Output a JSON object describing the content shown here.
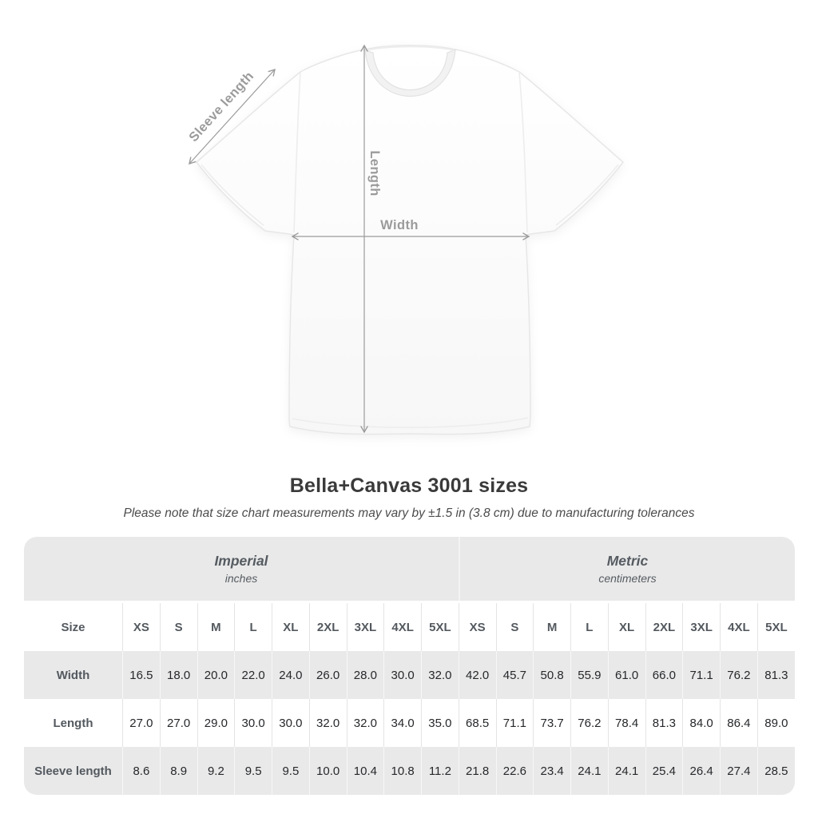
{
  "diagram": {
    "sleeve_label": "Sleeve length",
    "length_label": "Length",
    "width_label": "Width"
  },
  "title": "Bella+Canvas 3001 sizes",
  "subtitle": "Please note that size chart measurements may vary by ±1.5 in (3.8 cm) due to manufacturing tolerances",
  "colors": {
    "annotation_gray": "#9b9b9b",
    "band_background": "#e9e9e9",
    "striped_row_background": "#e9e9e9",
    "title_text": "#3a3a3a",
    "header_text": "#53595f",
    "value_text": "#26282b"
  },
  "chart_data": {
    "type": "table",
    "title": "Bella+Canvas 3001 sizes",
    "note": "Please note that size chart measurements may vary by ±1.5 in (3.8 cm) due to manufacturing tolerances",
    "unit_groups": [
      {
        "label": "Imperial",
        "sublabel": "inches"
      },
      {
        "label": "Metric",
        "sublabel": "centimeters"
      }
    ],
    "corner_header": "Size",
    "sizes": [
      "XS",
      "S",
      "M",
      "L",
      "XL",
      "2XL",
      "3XL",
      "4XL",
      "5XL"
    ],
    "rows": [
      {
        "label": "Width",
        "imperial": [
          "16.5",
          "18.0",
          "20.0",
          "22.0",
          "24.0",
          "26.0",
          "28.0",
          "30.0",
          "32.0"
        ],
        "metric": [
          "42.0",
          "45.7",
          "50.8",
          "55.9",
          "61.0",
          "66.0",
          "71.1",
          "76.2",
          "81.3"
        ]
      },
      {
        "label": "Length",
        "imperial": [
          "27.0",
          "27.0",
          "29.0",
          "30.0",
          "30.0",
          "32.0",
          "32.0",
          "34.0",
          "35.0"
        ],
        "metric": [
          "68.5",
          "71.1",
          "73.7",
          "76.2",
          "78.4",
          "81.3",
          "84.0",
          "86.4",
          "89.0"
        ]
      },
      {
        "label": "Sleeve length",
        "imperial": [
          "8.6",
          "8.9",
          "9.2",
          "9.5",
          "9.5",
          "10.0",
          "10.4",
          "10.8",
          "11.2"
        ],
        "metric": [
          "21.8",
          "22.6",
          "23.4",
          "24.1",
          "24.1",
          "25.4",
          "26.4",
          "27.4",
          "28.5"
        ]
      }
    ]
  }
}
